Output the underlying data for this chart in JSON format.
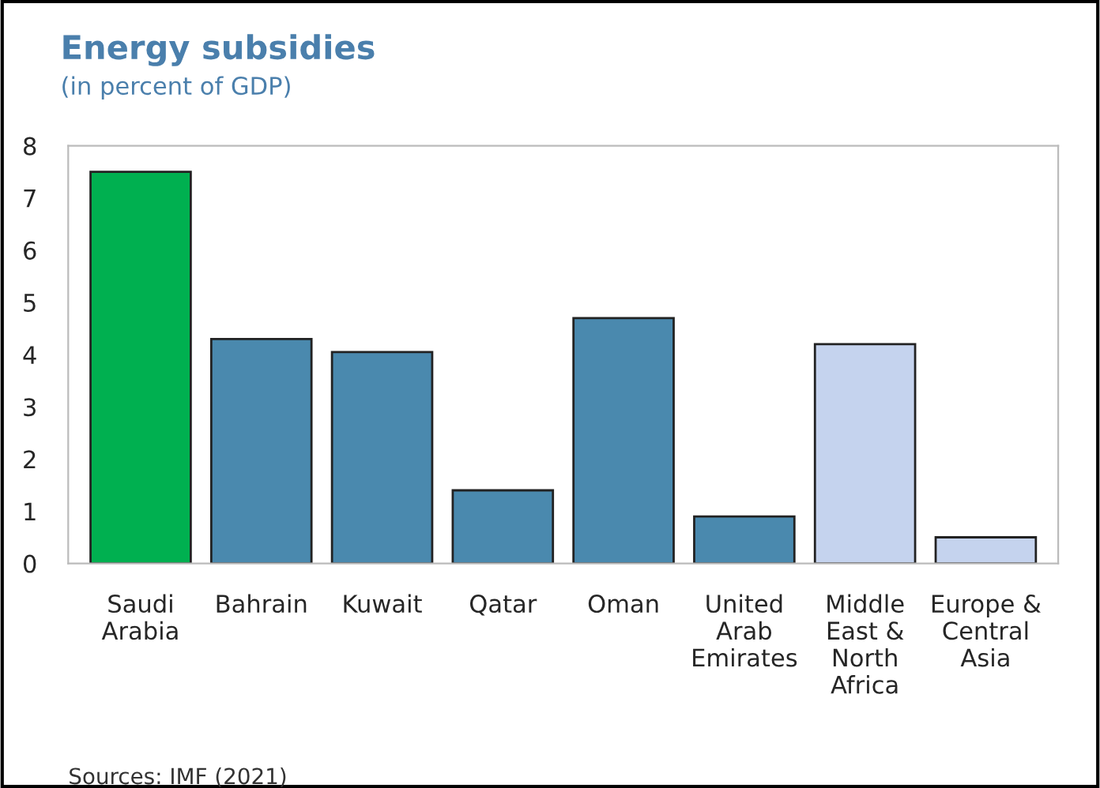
{
  "chart_data": {
    "type": "bar",
    "title": "Energy subsidies",
    "subtitle": "(in percent of GDP)",
    "categories": [
      "Saudi\nArabia",
      "Bahrain",
      "Kuwait",
      "Qatar",
      "Oman",
      "United\nArab\nEmirates",
      "Middle\nEast &\nNorth\nAfrica",
      "Europe &\nCentral\nAsia"
    ],
    "values": [
      7.5,
      4.3,
      4.05,
      1.4,
      4.7,
      0.9,
      4.2,
      0.5
    ],
    "colors": [
      "#00b050",
      "#4a89ae",
      "#4a89ae",
      "#4a89ae",
      "#4a89ae",
      "#4a89ae",
      "#c5d3ee",
      "#c5d3ee"
    ],
    "ylim": [
      0,
      8
    ],
    "yticks": [
      0,
      1,
      2,
      3,
      4,
      5,
      6,
      7,
      8
    ],
    "grid": false,
    "legend": false,
    "annotations": [
      "Sources: IMF (2021)"
    ]
  }
}
